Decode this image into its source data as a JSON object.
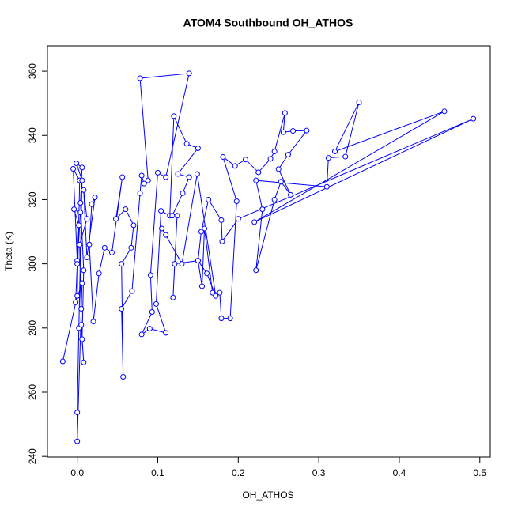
{
  "chart_data": {
    "type": "line",
    "title": "ATOM4 Southbound OH_ATHOS",
    "x_label": "OH_ATHOS",
    "y_label": "Theta (K)",
    "color": "#0000ff",
    "markers": true,
    "grid": false,
    "xlim": [
      -0.037,
      0.513
    ],
    "ylim": [
      239.8,
      367.9
    ],
    "xticks": [
      {
        "value": 0,
        "label": "0.0"
      },
      0.1,
      0.2,
      0.3,
      0.4,
      0.5
    ],
    "yticks": [
      240,
      260,
      280,
      300,
      320,
      340,
      360
    ],
    "x": [
      -0.018,
      0.0,
      0.003,
      -0.005,
      0.0,
      0.002,
      -0.004,
      0.004,
      0.0,
      -0.002,
      0.006,
      0.005,
      0.0,
      0.0,
      0.002,
      0.006,
      -0.001,
      0.006,
      0.004,
      0.008,
      0.006,
      0.008,
      0.005,
      0.003,
      0.012,
      0.008,
      0.012,
      0.022,
      0.018,
      0.015,
      0.02,
      0.027,
      0.034,
      0.043,
      0.056,
      0.048,
      0.06,
      0.07,
      0.067,
      0.055,
      0.057,
      0.055,
      0.068,
      0.078,
      0.08,
      0.083,
      0.088,
      0.078,
      0.139,
      0.11,
      0.1,
      0.091,
      0.093,
      0.08,
      0.09,
      0.11,
      0.098,
      0.104,
      0.115,
      0.12,
      0.136,
      0.15,
      0.125,
      0.139,
      0.131,
      0.118,
      0.124,
      0.119,
      0.121,
      0.15,
      0.155,
      0.158,
      0.168,
      0.177,
      0.179,
      0.19,
      0.198,
      0.181,
      0.196,
      0.209,
      0.225,
      0.24,
      0.245,
      0.258,
      0.256,
      0.268,
      0.285,
      0.262,
      0.25,
      0.265,
      0.253,
      0.245,
      0.222,
      0.23,
      0.222,
      0.31,
      0.312,
      0.333,
      0.35,
      0.32,
      0.456,
      0.22,
      0.492,
      0.2,
      0.18,
      0.179,
      0.163,
      0.154,
      0.15,
      0.161,
      0.172,
      0.149,
      0.13,
      0.11,
      0.105
    ],
    "values": [
      269.6,
      290,
      326,
      329.6,
      301,
      312,
      317,
      316,
      300,
      288,
      294,
      286,
      244.7,
      253.7,
      280,
      326,
      331.3,
      330,
      319,
      298,
      276.5,
      269.3,
      281,
      306,
      314,
      323,
      302,
      320.7,
      318.6,
      306,
      282,
      297,
      305,
      303.5,
      327,
      314,
      317,
      312,
      305,
      300,
      264.8,
      286,
      291.5,
      322,
      327.5,
      325,
      326,
      357.8,
      359.3,
      327,
      328.4,
      296.5,
      285,
      278,
      279.8,
      278.5,
      287.5,
      316.5,
      315,
      346,
      337.4,
      336,
      328,
      327,
      322,
      315,
      315,
      289.5,
      300,
      301,
      293,
      311,
      291,
      291,
      283,
      283,
      319.5,
      333.3,
      330.5,
      332.5,
      328.5,
      332.7,
      335,
      347,
      341,
      341.4,
      341.5,
      334,
      329.5,
      321.5,
      325.6,
      320,
      298,
      317,
      326,
      324,
      333,
      333.4,
      350.3,
      335,
      347.5,
      313,
      345.2,
      314,
      307,
      313.6,
      320,
      310,
      301,
      297,
      290,
      328,
      300,
      309,
      311
    ]
  }
}
